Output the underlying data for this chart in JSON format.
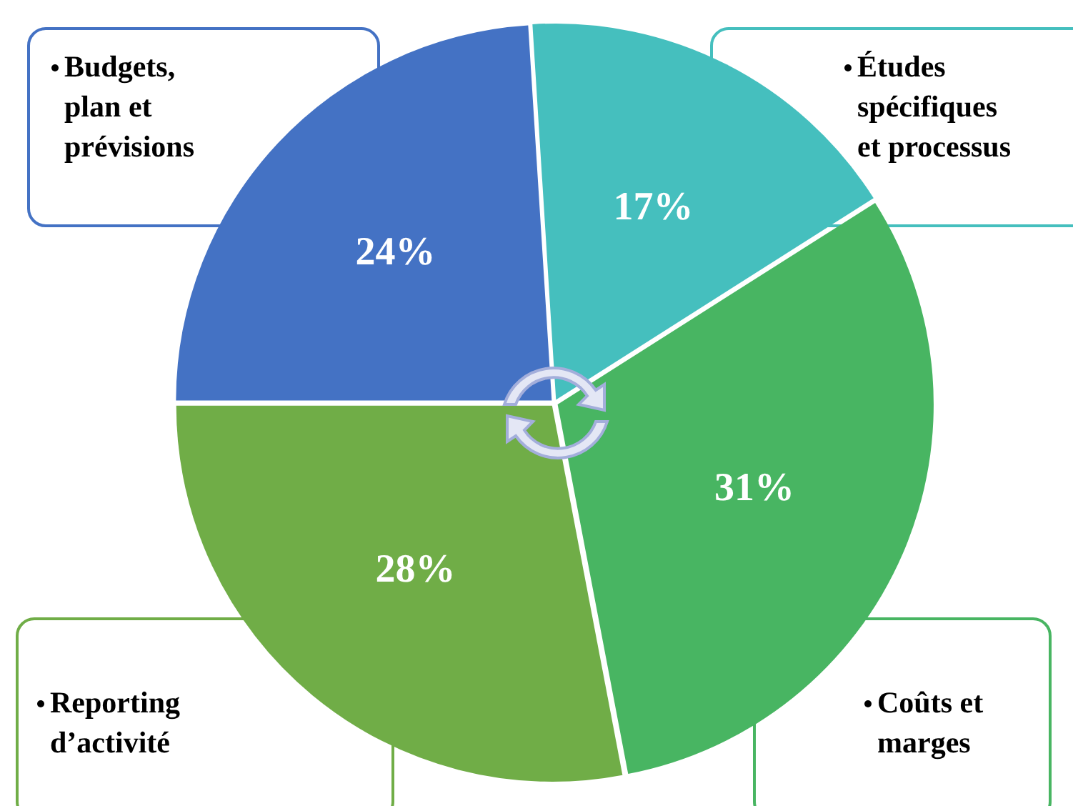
{
  "chart_data": {
    "type": "pie",
    "categories": [
      "Budgets,\nplan et\nprévisions",
      "Études\nspécifiques\net processus",
      "Coûts et\nmarges",
      "Reporting\nd’activité"
    ],
    "values": [
      24,
      17,
      31,
      28
    ],
    "value_labels": [
      "24%",
      "17%",
      "31%",
      "28%"
    ],
    "colors": [
      "#4472c4",
      "#45bfbe",
      "#48b562",
      "#70ad47"
    ]
  }
}
